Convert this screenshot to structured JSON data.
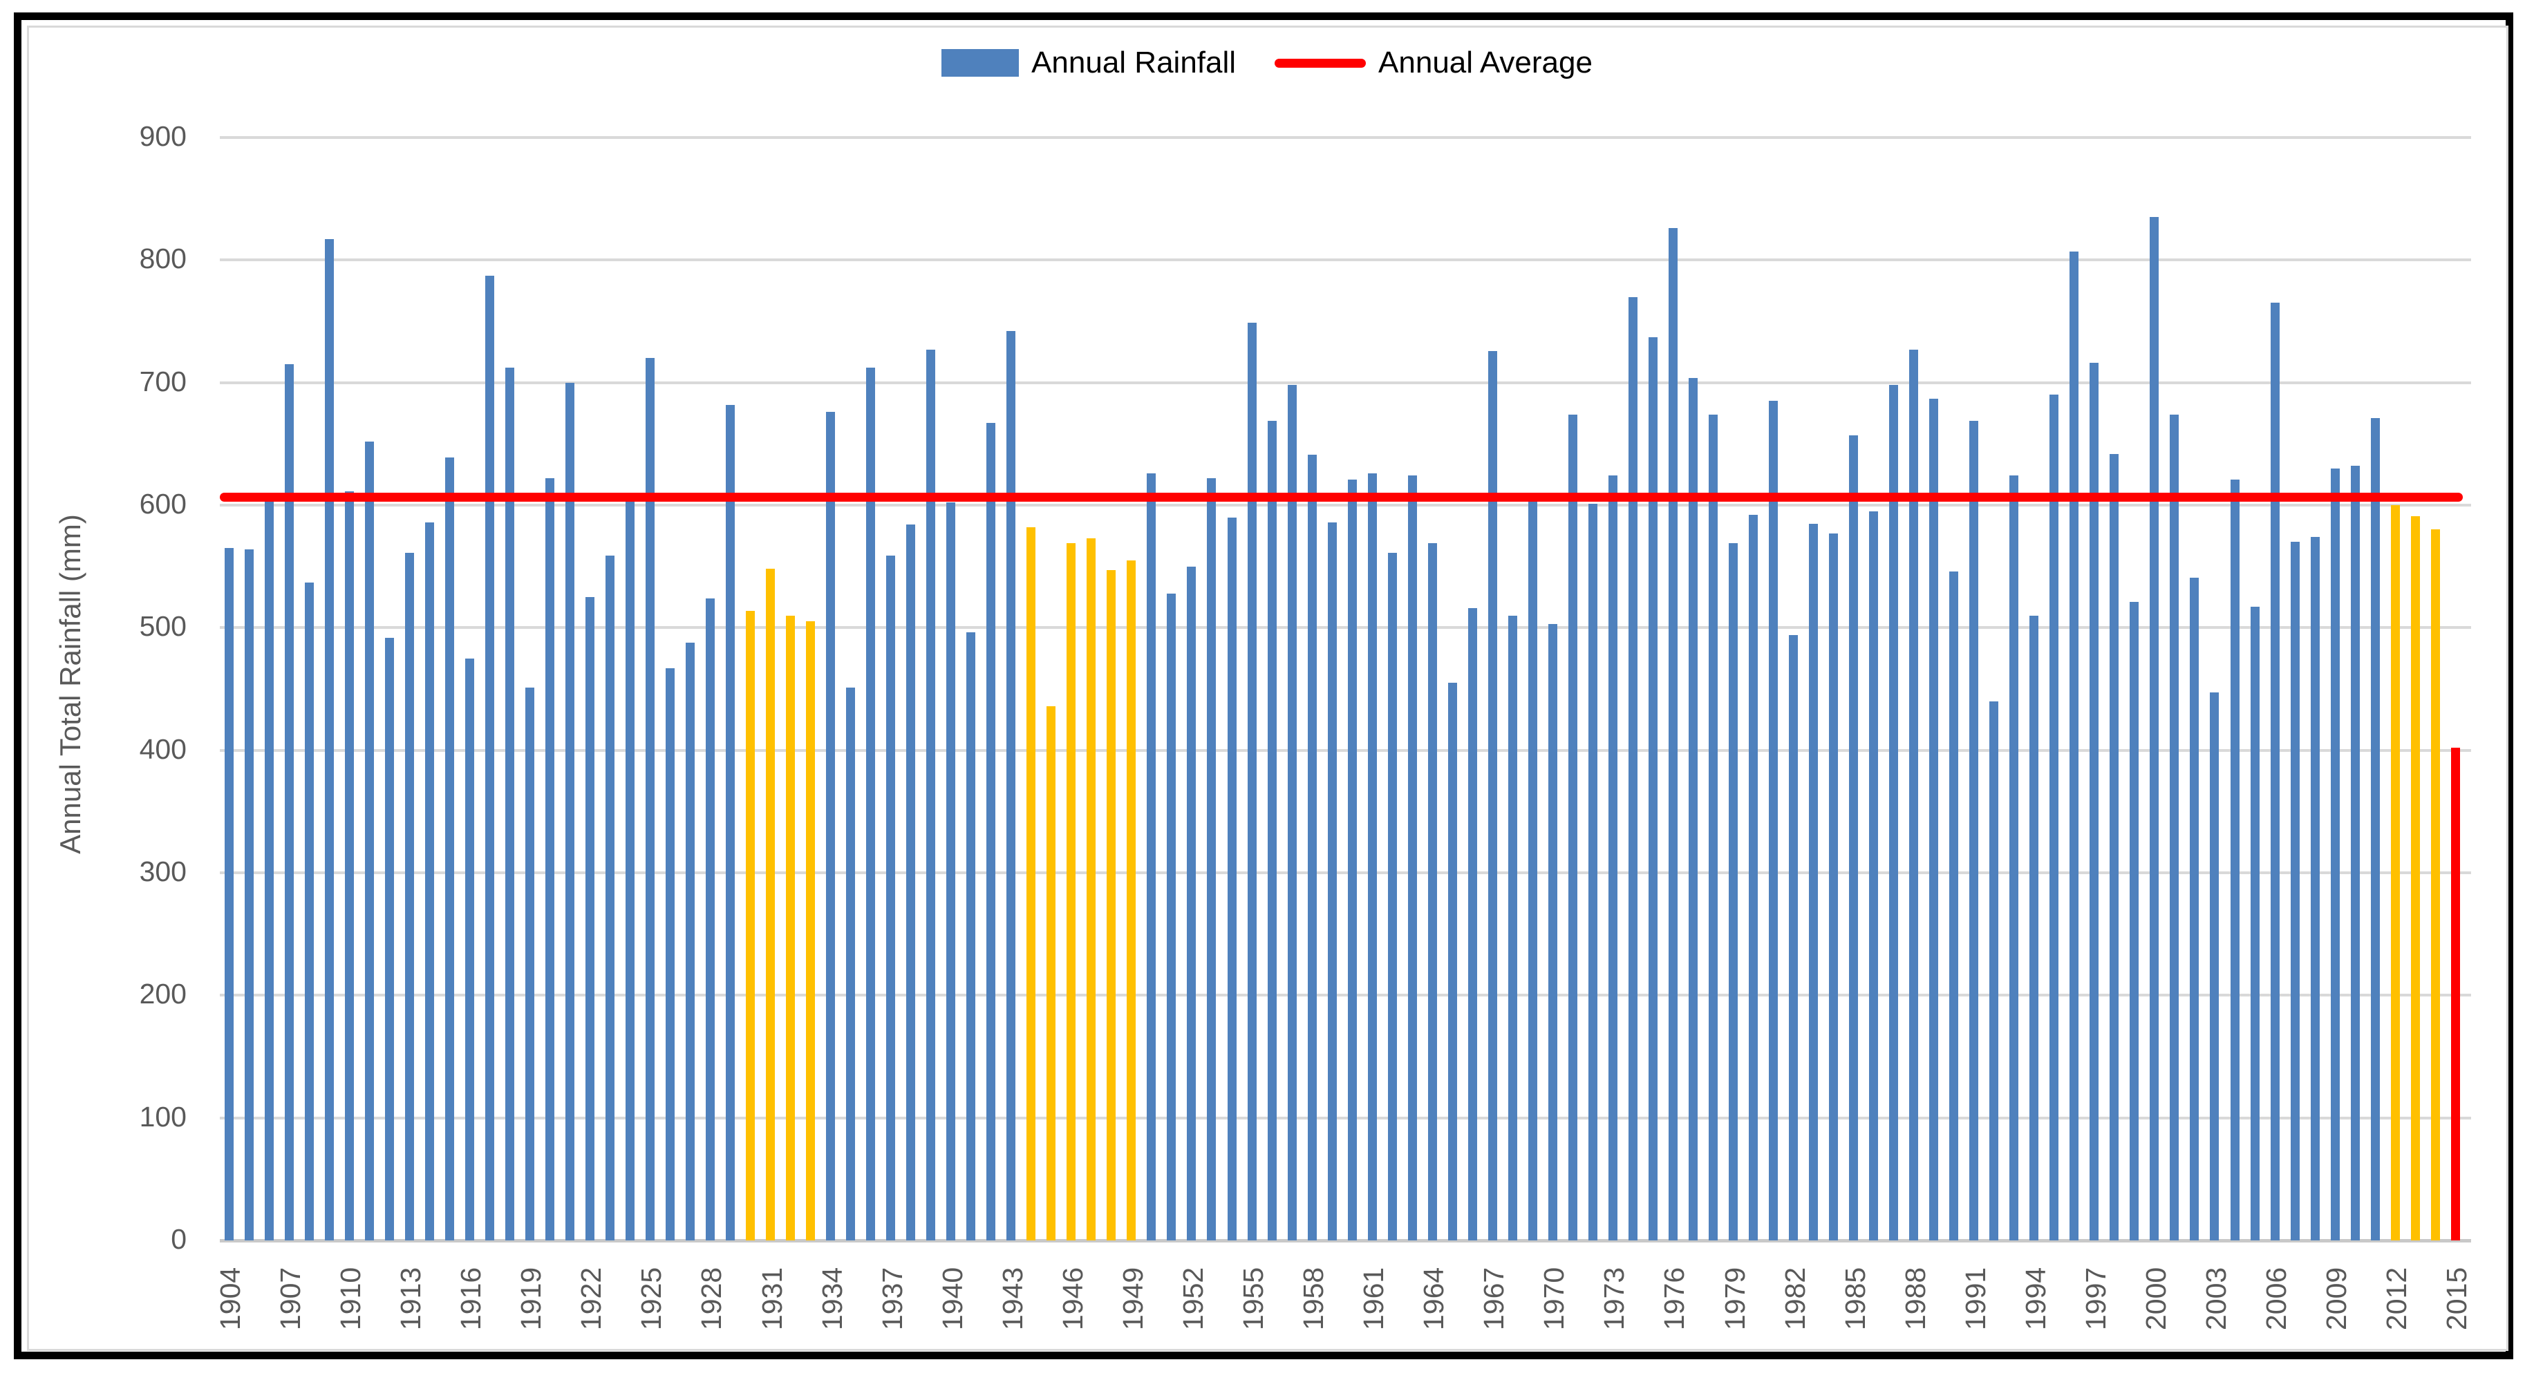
{
  "legend": {
    "rainfall_label": "Annual Rainfall",
    "average_label": "Annual Average"
  },
  "y_axis": {
    "title": "Annual Total Rainfall (mm)",
    "tick_labels": [
      "0",
      "100",
      "200",
      "300",
      "400",
      "500",
      "600",
      "700",
      "800",
      "900"
    ]
  },
  "x_axis": {
    "tick_years": [
      1904,
      1907,
      1910,
      1913,
      1916,
      1919,
      1922,
      1925,
      1928,
      1931,
      1934,
      1937,
      1940,
      1943,
      1946,
      1949,
      1952,
      1955,
      1958,
      1961,
      1964,
      1967,
      1970,
      1973,
      1976,
      1979,
      1982,
      1985,
      1988,
      1991,
      1994,
      1997,
      2000,
      2003,
      2006,
      2009,
      2012,
      2015
    ]
  },
  "chart_data": {
    "type": "bar",
    "title": "",
    "xlabel": "",
    "ylabel": "Annual Total Rainfall (mm)",
    "ylim": [
      0,
      900
    ],
    "grid": true,
    "legend_position": "top-center",
    "start_year": 1904,
    "end_year": 2015,
    "categories": [
      1904,
      1905,
      1906,
      1907,
      1908,
      1909,
      1910,
      1911,
      1912,
      1913,
      1914,
      1915,
      1916,
      1917,
      1918,
      1919,
      1920,
      1921,
      1922,
      1923,
      1924,
      1925,
      1926,
      1927,
      1928,
      1929,
      1930,
      1931,
      1932,
      1933,
      1934,
      1935,
      1936,
      1937,
      1938,
      1939,
      1940,
      1941,
      1942,
      1943,
      1944,
      1945,
      1946,
      1947,
      1948,
      1949,
      1950,
      1951,
      1952,
      1953,
      1954,
      1955,
      1956,
      1957,
      1958,
      1959,
      1960,
      1961,
      1962,
      1963,
      1964,
      1965,
      1966,
      1967,
      1968,
      1969,
      1970,
      1971,
      1972,
      1973,
      1974,
      1975,
      1976,
      1977,
      1978,
      1979,
      1980,
      1981,
      1982,
      1983,
      1984,
      1985,
      1986,
      1987,
      1988,
      1989,
      1990,
      1991,
      1992,
      1993,
      1994,
      1995,
      1996,
      1997,
      1998,
      1999,
      2000,
      2001,
      2002,
      2003,
      2004,
      2005,
      2006,
      2007,
      2008,
      2009,
      2010,
      2011,
      2012,
      2013,
      2014,
      2015
    ],
    "series": [
      {
        "name": "Annual Rainfall",
        "values": [
          565,
          564,
          604,
          715,
          537,
          817,
          611,
          652,
          492,
          561,
          586,
          639,
          475,
          787,
          712,
          451,
          622,
          700,
          525,
          559,
          604,
          720,
          467,
          488,
          524,
          682,
          514,
          548,
          510,
          505,
          676,
          451,
          712,
          559,
          584,
          727,
          602,
          496,
          667,
          742,
          582,
          436,
          569,
          573,
          547,
          555,
          626,
          528,
          550,
          622,
          590,
          749,
          669,
          698,
          641,
          586,
          621,
          626,
          561,
          624,
          569,
          455,
          516,
          726,
          510,
          606,
          503,
          674,
          601,
          624,
          770,
          737,
          826,
          704,
          674,
          569,
          592,
          685,
          494,
          585,
          577,
          657,
          595,
          698,
          727,
          687,
          546,
          669,
          440,
          624,
          510,
          690,
          807,
          716,
          642,
          521,
          835,
          674,
          541,
          447,
          621,
          517,
          765,
          570,
          574,
          630,
          632,
          671,
          600,
          591,
          580,
          402
        ]
      }
    ],
    "average_line": {
      "name": "Annual Average",
      "value": 607
    },
    "highlight_orange_years": [
      1930,
      1931,
      1932,
      1933,
      1944,
      1945,
      1946,
      1947,
      1948,
      1949,
      2012,
      2013,
      2014
    ],
    "highlight_red_years": [
      2015
    ],
    "colors": {
      "bar_blue": "#4F81BD",
      "bar_orange": "#FFC000",
      "bar_red": "#FF0000",
      "average_line": "#FF0000",
      "gridline": "#D9D9D9",
      "baseline": "#C9C9C9",
      "axis_text": "#595959"
    }
  }
}
